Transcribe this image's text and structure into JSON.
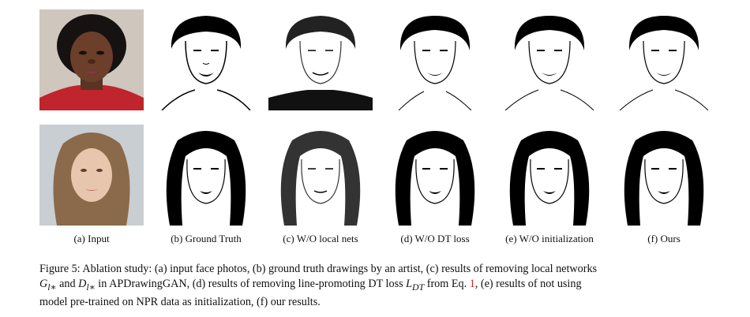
{
  "figure": {
    "column_labels": [
      "(a) Input",
      "(b) Ground Truth",
      "(c) W/O local nets",
      "(d) W/O DT loss",
      "(e) W/O initialization",
      "(f) Ours"
    ],
    "caption": {
      "part1": "Figure 5: Ablation study: (a) input face photos, (b) ground truth drawings by an artist, (c) results of removing local networks",
      "g_sym": "G",
      "g_sub": "l∗",
      "and_text": " and ",
      "d_sym": "D",
      "d_sub": "l∗",
      "part2": " in APDrawingGAN, (d) results of removing line-promoting DT loss ",
      "l_sym": "L",
      "l_sub": "DT",
      "part3": " from Eq. ",
      "eq_ref": "1",
      "part4": ", (e) results of not using",
      "line3": "model pre-trained on NPR data as initialization, (f) our results."
    },
    "colors": {
      "ref": "#dd2222",
      "jacket_red": "#c0242c",
      "skin_dark": "#6b3f2a",
      "skin_light": "#e8c6ad"
    }
  }
}
